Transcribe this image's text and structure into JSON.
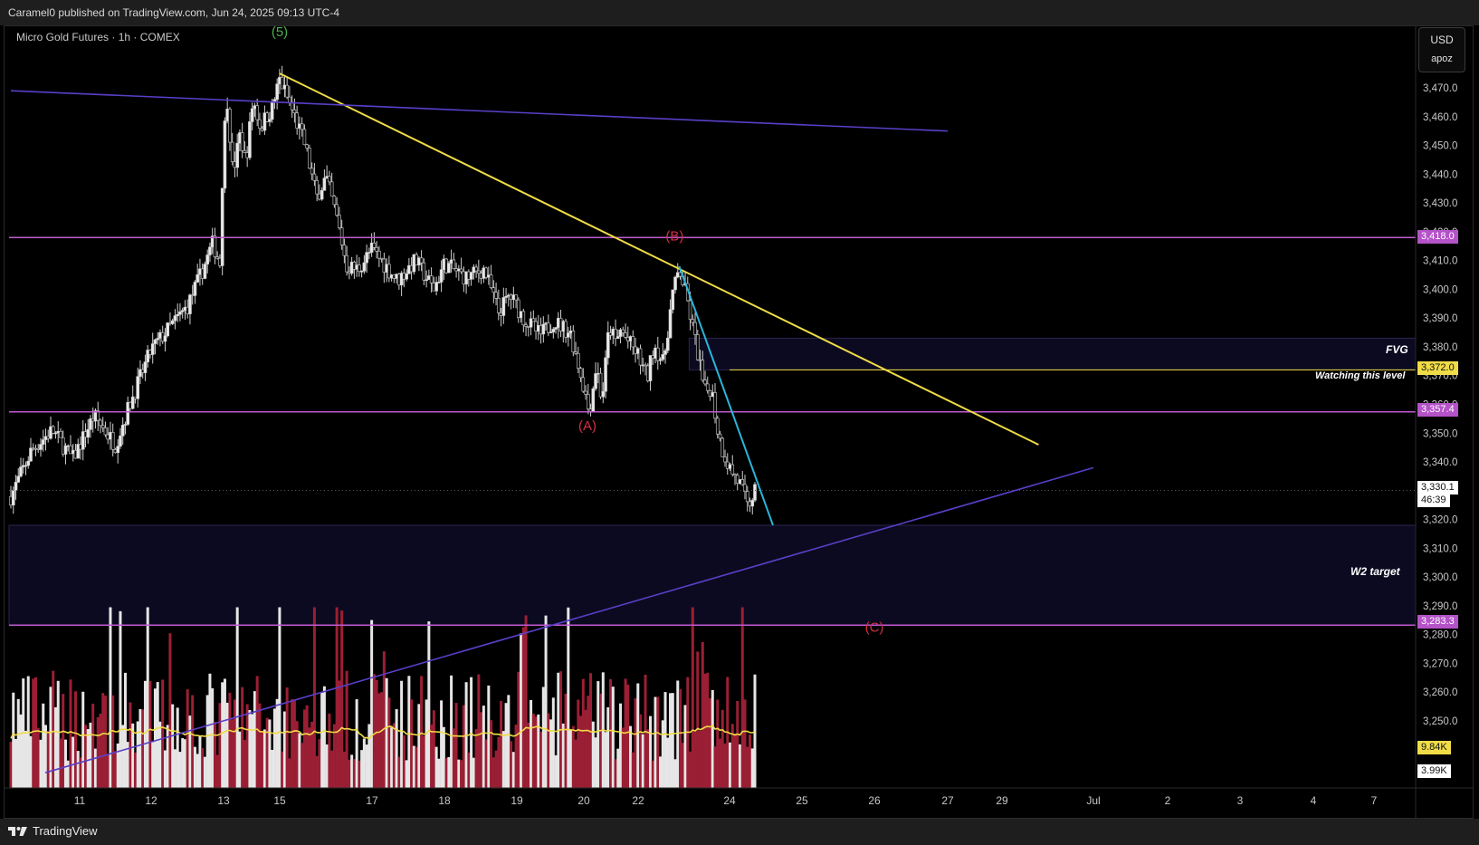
{
  "header": {
    "published": "Caramel0 published on TradingView.com, Jun 24, 2025 09:13 UTC-4"
  },
  "symbol": {
    "title": "Micro Gold Futures · 1h · COMEX"
  },
  "currency": {
    "code": "USD",
    "scale": "apoz"
  },
  "footer": {
    "brand": "TradingView",
    "logo_icon": "tradingview-logo-icon"
  },
  "price_tags": {
    "r1": "3,418.0",
    "watch": "3,372.0",
    "r2": "3,357.4",
    "current": "3,330.1",
    "countdown": "46:39",
    "target": "3,283.3",
    "vol_avg": "9.84K",
    "vol_last": "3.99K"
  },
  "annotations": {
    "fvg": "FVG",
    "watching": "Watching this level",
    "w2": "W2 target",
    "wave5": "(5)",
    "waveA": "(A)",
    "waveB": "(B)",
    "waveC": "(C)"
  },
  "colors": {
    "level_line": "#c05ad0",
    "level_tag": "#b452c8",
    "trend_yellow": "#f0dc46",
    "trend_cyan": "#29b6d9",
    "trend_purple": "#5a3fc8",
    "wave_red": "#d32f45",
    "wave_green": "#4caf50",
    "zone": "#0c0a20"
  },
  "chart_data": {
    "type": "candlestick",
    "title": "Micro Gold Futures · 1h · COMEX",
    "interval": "1h",
    "currency": "USD",
    "y_ticks": [
      3470,
      3460,
      3450,
      3440,
      3430,
      3420,
      3410,
      3400,
      3390,
      3380,
      3370,
      3360,
      3350,
      3340,
      3320,
      3310,
      3300,
      3290,
      3280,
      3270,
      3260,
      3250
    ],
    "x_ticks": [
      "11",
      "12",
      "13",
      "15",
      "17",
      "18",
      "19",
      "20",
      "22",
      "24",
      "25",
      "26",
      "27",
      "29",
      "Jul",
      "2",
      "3",
      "4",
      "7"
    ],
    "price_path": [
      {
        "d": 10.0,
        "p": 3328
      },
      {
        "d": 10.3,
        "p": 3344
      },
      {
        "d": 10.6,
        "p": 3351
      },
      {
        "d": 10.9,
        "p": 3341
      },
      {
        "d": 11.2,
        "p": 3356
      },
      {
        "d": 11.5,
        "p": 3346
      },
      {
        "d": 11.7,
        "p": 3360
      },
      {
        "d": 12.0,
        "p": 3379
      },
      {
        "d": 12.3,
        "p": 3388
      },
      {
        "d": 12.5,
        "p": 3394
      },
      {
        "d": 12.7,
        "p": 3406
      },
      {
        "d": 12.85,
        "p": 3416
      },
      {
        "d": 12.95,
        "p": 3409
      },
      {
        "d": 13.0,
        "p": 3452
      },
      {
        "d": 13.1,
        "p": 3466
      },
      {
        "d": 13.25,
        "p": 3440
      },
      {
        "d": 13.45,
        "p": 3454
      },
      {
        "d": 13.6,
        "p": 3444
      },
      {
        "d": 13.8,
        "p": 3466
      },
      {
        "d": 14.0,
        "p": 3456
      },
      {
        "d": 14.15,
        "p": 3460
      },
      {
        "d": 15.0,
        "p": 3473
      },
      {
        "d": 15.3,
        "p": 3461
      },
      {
        "d": 15.55,
        "p": 3450
      },
      {
        "d": 15.8,
        "p": 3432
      },
      {
        "d": 16.0,
        "p": 3439
      },
      {
        "d": 16.25,
        "p": 3424
      },
      {
        "d": 16.45,
        "p": 3408
      },
      {
        "d": 16.7,
        "p": 3407
      },
      {
        "d": 17.0,
        "p": 3414
      },
      {
        "d": 17.35,
        "p": 3403
      },
      {
        "d": 17.6,
        "p": 3410
      },
      {
        "d": 17.85,
        "p": 3400
      },
      {
        "d": 18.0,
        "p": 3409
      },
      {
        "d": 18.3,
        "p": 3404
      },
      {
        "d": 18.55,
        "p": 3407
      },
      {
        "d": 18.75,
        "p": 3392
      },
      {
        "d": 18.9,
        "p": 3398
      },
      {
        "d": 19.1,
        "p": 3390
      },
      {
        "d": 19.35,
        "p": 3384
      },
      {
        "d": 19.55,
        "p": 3389
      },
      {
        "d": 19.8,
        "p": 3385
      },
      {
        "d": 20.0,
        "p": 3366
      },
      {
        "d": 20.15,
        "p": 3357
      },
      {
        "d": 20.35,
        "p": 3374
      },
      {
        "d": 20.5,
        "p": 3361
      },
      {
        "d": 20.7,
        "p": 3387
      },
      {
        "d": 20.9,
        "p": 3381
      },
      {
        "d": 21.0,
        "p": 3386
      },
      {
        "d": 22.0,
        "p": 3377
      },
      {
        "d": 22.2,
        "p": 3369
      },
      {
        "d": 22.35,
        "p": 3381
      },
      {
        "d": 22.55,
        "p": 3374
      },
      {
        "d": 22.75,
        "p": 3398
      },
      {
        "d": 22.9,
        "p": 3407
      },
      {
        "d": 23.05,
        "p": 3398
      },
      {
        "d": 23.2,
        "p": 3386
      },
      {
        "d": 23.35,
        "p": 3374
      },
      {
        "d": 23.45,
        "p": 3364
      },
      {
        "d": 23.6,
        "p": 3366
      },
      {
        "d": 23.75,
        "p": 3350
      },
      {
        "d": 23.85,
        "p": 3344
      },
      {
        "d": 24.0,
        "p": 3338
      },
      {
        "d": 24.15,
        "p": 3332
      },
      {
        "d": 24.25,
        "p": 3324
      },
      {
        "d": 24.35,
        "p": 3330
      }
    ],
    "levels": [
      {
        "name": "resistance",
        "price": 3418.0
      },
      {
        "name": "watching this level",
        "price": 3372.0
      },
      {
        "name": "support",
        "price": 3357.4
      },
      {
        "name": "W2 target",
        "price": 3283.3
      },
      {
        "name": "current",
        "price": 3330.1
      }
    ],
    "zones": [
      {
        "label": "FVG",
        "from": 3372.0,
        "to": 3383.0
      },
      {
        "label": "W2 target",
        "from": 3283.3,
        "to": 3318.0
      }
    ],
    "trendlines": [
      {
        "color": "yellow",
        "from": {
          "d": 15.0,
          "p": 3475
        },
        "to": {
          "d": 29.8,
          "p": 3346
        }
      },
      {
        "color": "cyan",
        "from": {
          "d": 22.9,
          "p": 3408
        },
        "to": {
          "d": 24.6,
          "p": 3318
        }
      },
      {
        "color": "purple",
        "from": {
          "d": 10.0,
          "p": 3469
        },
        "to": {
          "d": 27.0,
          "p": 3455
        }
      },
      {
        "color": "purple",
        "from": {
          "d": 10.5,
          "p": 3232
        },
        "to": {
          "d": 31.0,
          "p": 3338
        }
      }
    ],
    "wave_labels": [
      {
        "label": "(5)",
        "d": 15.0,
        "p": 3488
      },
      {
        "label": "(B)",
        "d": 22.8,
        "p": 3417
      },
      {
        "label": "(A)",
        "d": 20.1,
        "p": 3351
      },
      {
        "label": "(C)",
        "d": 26.0,
        "p": 3281
      }
    ],
    "volume": {
      "average_label": "9.84K",
      "last_label": "3.99K"
    }
  }
}
